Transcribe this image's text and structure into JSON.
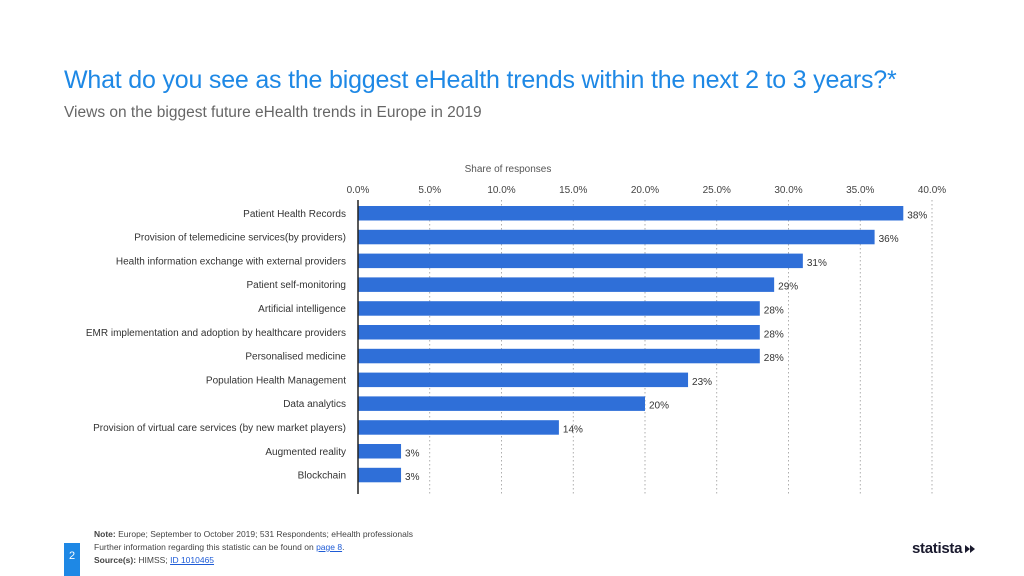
{
  "title": "What do you see as the biggest eHealth trends within the next 2 to 3 years?*",
  "subtitle": "Views on the biggest future eHealth trends in Europe in 2019",
  "chart_data": {
    "type": "bar",
    "orientation": "horizontal",
    "xlabel": "Share of responses",
    "xlim": [
      0,
      40
    ],
    "ticks": [
      0,
      5,
      10,
      15,
      20,
      25,
      30,
      35,
      40
    ],
    "tick_labels": [
      "0.0%",
      "5.0%",
      "10.0%",
      "15.0%",
      "20.0%",
      "25.0%",
      "30.0%",
      "35.0%",
      "40.0%"
    ],
    "categories": [
      "Patient Health Records",
      "Provision of telemedicine services(by providers)",
      "Health information exchange with external providers",
      "Patient self-monitoring",
      "Artificial intelligence",
      "EMR implementation and adoption by healthcare providers",
      "Personalised medicine",
      "Population Health Management",
      "Data analytics",
      "Provision of virtual care services (by new market players)",
      "Augmented reality",
      "Blockchain"
    ],
    "values": [
      38,
      36,
      31,
      29,
      28,
      28,
      28,
      23,
      20,
      14,
      3,
      3
    ],
    "value_labels": [
      "38%",
      "36%",
      "31%",
      "29%",
      "28%",
      "28%",
      "28%",
      "23%",
      "20%",
      "14%",
      "3%",
      "3%"
    ],
    "bar_color": "#2f6fd8",
    "grid": "dotted-vertical"
  },
  "footer": {
    "note_label": "Note:",
    "note_text": "Europe; September to October 2019; 531 Respondents; eHealth professionals",
    "info_text": "Further information regarding this statistic can be found on",
    "info_link": "page 8",
    "info_end": ".",
    "source_label": "Source(s):",
    "source_text": "HIMSS;",
    "source_link": "ID 1010465"
  },
  "page_number": "2",
  "logo": "statista",
  "colors": {
    "title": "#1e88e5",
    "bar": "#2f6fd8",
    "accent": "#1e88e5"
  }
}
